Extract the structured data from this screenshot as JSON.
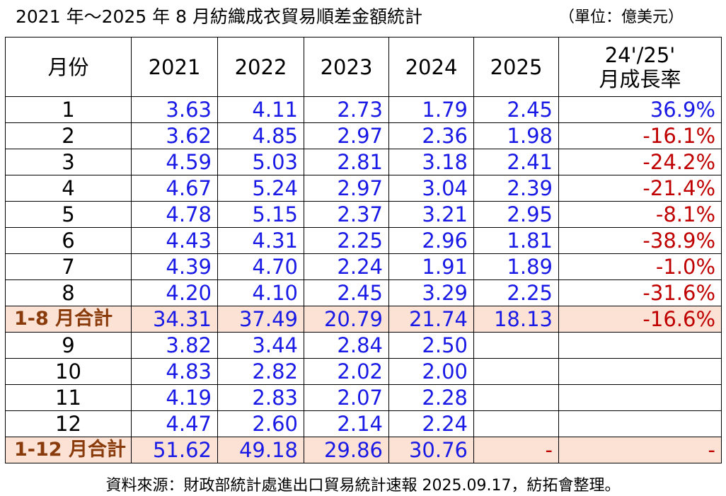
{
  "title": "2021 年～2025 年 8 月紡織成衣貿易順差金額統計",
  "unit": "（單位：億美元）",
  "table": {
    "header": [
      "月份",
      "2021",
      "2022",
      "2023",
      "2024",
      "2025",
      "24'/25'\n月成長率"
    ],
    "rows": [
      [
        "1",
        "3.63",
        "4.11",
        "2.73",
        "1.79",
        "2.45",
        "36.9%"
      ],
      [
        "2",
        "3.62",
        "4.85",
        "2.97",
        "2.36",
        "1.98",
        "-16.1%"
      ],
      [
        "3",
        "4.59",
        "5.03",
        "2.81",
        "3.18",
        "2.41",
        "-24.2%"
      ],
      [
        "4",
        "4.67",
        "5.24",
        "2.97",
        "3.04",
        "2.39",
        "-21.4%"
      ],
      [
        "5",
        "4.78",
        "5.15",
        "2.37",
        "3.21",
        "2.95",
        "-8.1%"
      ],
      [
        "6",
        "4.43",
        "4.31",
        "2.25",
        "2.96",
        "1.81",
        "-38.9%"
      ],
      [
        "7",
        "4.39",
        "4.70",
        "2.24",
        "1.91",
        "1.89",
        "-1.0%"
      ],
      [
        "8",
        "4.20",
        "4.10",
        "2.45",
        "3.29",
        "2.25",
        "-31.6%"
      ],
      [
        "1-8 月合計",
        "34.31",
        "37.49",
        "20.79",
        "21.74",
        "18.13",
        "-16.6%"
      ],
      [
        "9",
        "3.82",
        "3.44",
        "2.84",
        "2.50"
      ],
      [
        "10",
        "4.83",
        "2.82",
        "2.02",
        "2.00"
      ],
      [
        "11",
        "4.19",
        "2.83",
        "2.07",
        "2.28"
      ],
      [
        "12",
        "4.47",
        "2.60",
        "2.14",
        "2.24"
      ],
      [
        "1-12 月合計",
        "51.62",
        "49.18",
        "29.86",
        "30.76",
        "-",
        "-"
      ]
    ]
  },
  "source": "資料來源：財政部統計處進出口貿易統計速報 2025.09.17，紡拓會整理。"
}
